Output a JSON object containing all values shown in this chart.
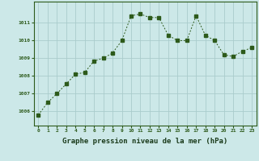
{
  "x": [
    0,
    1,
    2,
    3,
    4,
    5,
    6,
    7,
    8,
    9,
    10,
    11,
    12,
    13,
    14,
    15,
    16,
    17,
    18,
    19,
    20,
    21,
    22,
    23
  ],
  "y": [
    1005.8,
    1006.5,
    1007.0,
    1007.55,
    1008.1,
    1008.2,
    1008.85,
    1009.0,
    1009.3,
    1010.0,
    1011.4,
    1011.5,
    1011.3,
    1011.3,
    1010.3,
    1010.0,
    1010.0,
    1011.4,
    1010.3,
    1010.0,
    1009.2,
    1009.1,
    1009.4,
    1009.6
  ],
  "line_color": "#2d5a1b",
  "marker": "s",
  "marker_size": 2.2,
  "bg_color": "#cce8e8",
  "grid_color": "#aacccc",
  "xlabel": "Graphe pression niveau de la mer (hPa)",
  "xlabel_color": "#1a3a1a",
  "tick_color": "#2d5a1b",
  "ylim_min": 1005.2,
  "ylim_max": 1012.2,
  "yticks": [
    1006,
    1007,
    1008,
    1009,
    1010,
    1011
  ],
  "xticks": [
    0,
    1,
    2,
    3,
    4,
    5,
    6,
    7,
    8,
    9,
    10,
    11,
    12,
    13,
    14,
    15,
    16,
    17,
    18,
    19,
    20,
    21,
    22,
    23
  ],
  "border_color": "#2d5a1b"
}
